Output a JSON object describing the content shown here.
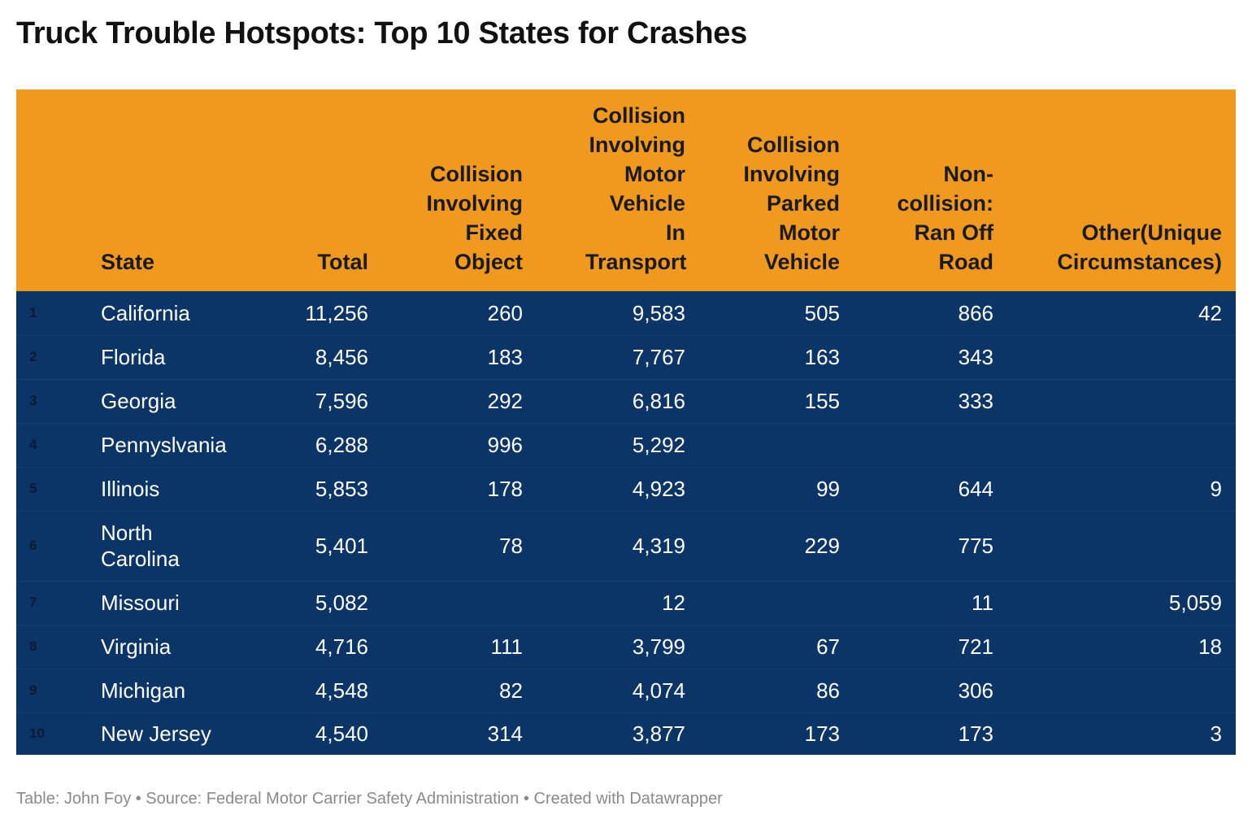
{
  "title": "Truck Trouble Hotspots: Top 10 States for Crashes",
  "footer": "Table: John Foy • Source: Federal Motor Carrier Safety Administration • Created with Datawrapper",
  "colors": {
    "header_bg": "#f0991f",
    "body_bg": "#0b3566",
    "body_text": "#ffffff"
  },
  "chart_data": {
    "type": "table",
    "columns": [
      "",
      "State",
      "Total",
      "Collision Involving Fixed Object",
      "Collision Involving Motor Vehicle In Transport",
      "Collision Involving Parked Motor Vehicle",
      "Non-collision: Ran Off Road",
      "Other(Unique Circumstances)"
    ],
    "rows": [
      [
        "1",
        "California",
        "11,256",
        "260",
        "9,583",
        "505",
        "866",
        "42"
      ],
      [
        "2",
        "Florida",
        "8,456",
        "183",
        "7,767",
        "163",
        "343",
        ""
      ],
      [
        "3",
        "Georgia",
        "7,596",
        "292",
        "6,816",
        "155",
        "333",
        ""
      ],
      [
        "4",
        "Pennyslvania",
        "6,288",
        "996",
        "5,292",
        "",
        "",
        ""
      ],
      [
        "5",
        "Illinois",
        "5,853",
        "178",
        "4,923",
        "99",
        "644",
        "9"
      ],
      [
        "6",
        "North Carolina",
        "5,401",
        "78",
        "4,319",
        "229",
        "775",
        ""
      ],
      [
        "7",
        "Missouri",
        "5,082",
        "",
        "12",
        "",
        "11",
        "5,059"
      ],
      [
        "8",
        "Virginia",
        "4,716",
        "111",
        "3,799",
        "67",
        "721",
        "18"
      ],
      [
        "9",
        "Michigan",
        "4,548",
        "82",
        "4,074",
        "86",
        "306",
        ""
      ],
      [
        "10",
        "New Jersey",
        "4,540",
        "314",
        "3,877",
        "173",
        "173",
        "3"
      ]
    ]
  }
}
